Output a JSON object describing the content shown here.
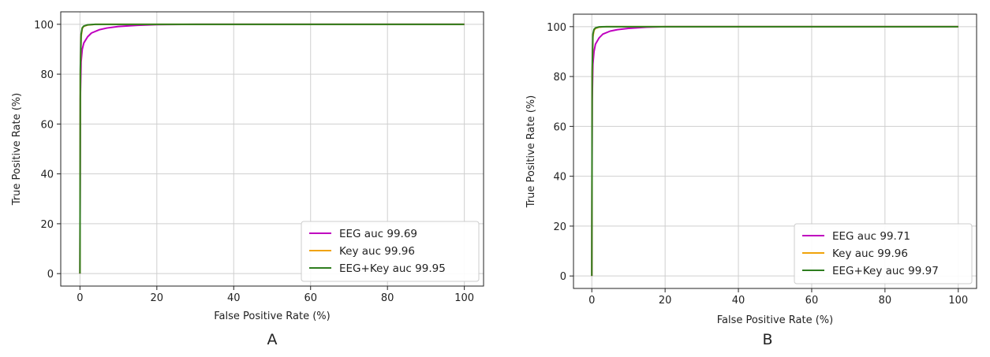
{
  "chart_data": [
    {
      "type": "line",
      "panel_label": "A",
      "xlabel": "False Positive Rate (%)",
      "ylabel": "True Positive Rate (%)",
      "xlim": [
        -5,
        105
      ],
      "ylim": [
        -5,
        105
      ],
      "xticks": [
        0,
        20,
        40,
        60,
        80,
        100
      ],
      "yticks": [
        0,
        20,
        40,
        60,
        80,
        100
      ],
      "grid": true,
      "legend_position": "bottom-right",
      "series": [
        {
          "name": "EEG auc 99.69",
          "color": "#bf00bf",
          "x": [
            0,
            0.1,
            0.3,
            0.6,
            1,
            2,
            3,
            5,
            7,
            10,
            15,
            20,
            30,
            100
          ],
          "y": [
            0,
            70,
            85,
            90,
            92.5,
            95,
            96.5,
            97.8,
            98.5,
            99.1,
            99.6,
            99.85,
            100,
            100
          ]
        },
        {
          "name": "Key auc 99.96",
          "color": "#f0a30a",
          "x": [
            0,
            0.1,
            0.3,
            0.6,
            1,
            2,
            4,
            100
          ],
          "y": [
            0,
            80,
            95,
            98.3,
            99.2,
            99.7,
            100,
            100
          ]
        },
        {
          "name": "EEG+Key auc 99.95",
          "color": "#2e7d1f",
          "x": [
            0,
            0.1,
            0.3,
            0.6,
            1,
            2,
            4,
            100
          ],
          "y": [
            0,
            82,
            96,
            98.6,
            99.3,
            99.8,
            100,
            100
          ]
        }
      ]
    },
    {
      "type": "line",
      "panel_label": "B",
      "xlabel": "False Positive Rate (%)",
      "ylabel": "True Positive Rate (%)",
      "xlim": [
        -5,
        105
      ],
      "ylim": [
        -5,
        105
      ],
      "xticks": [
        0,
        20,
        40,
        60,
        80,
        100
      ],
      "yticks": [
        0,
        20,
        40,
        60,
        80,
        100
      ],
      "grid": true,
      "legend_position": "bottom-right",
      "series": [
        {
          "name": "EEG auc 99.71",
          "color": "#bf00bf",
          "x": [
            0,
            0.1,
            0.3,
            0.6,
            1,
            2,
            3,
            5,
            7,
            10,
            15,
            20,
            100
          ],
          "y": [
            0,
            70,
            85,
            90,
            93,
            95.5,
            97,
            98.2,
            98.8,
            99.3,
            99.8,
            100,
            100
          ]
        },
        {
          "name": "Key auc 99.96",
          "color": "#f0a30a",
          "x": [
            0,
            0.1,
            0.3,
            0.6,
            1,
            2,
            4,
            100
          ],
          "y": [
            0,
            80,
            96,
            98.5,
            99.3,
            99.8,
            100,
            100
          ]
        },
        {
          "name": "EEG+Key auc 99.97",
          "color": "#2e7d1f",
          "x": [
            0,
            0.1,
            0.3,
            0.6,
            1,
            2,
            4,
            100
          ],
          "y": [
            0,
            82,
            97,
            98.9,
            99.5,
            99.9,
            100,
            100
          ]
        }
      ]
    }
  ]
}
